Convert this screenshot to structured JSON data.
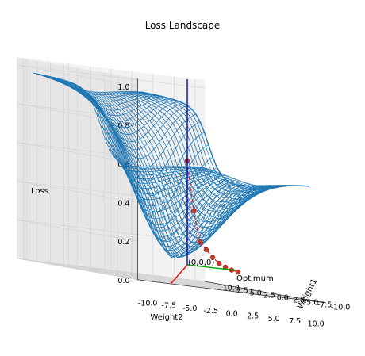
{
  "chart_data": {
    "type": "surface",
    "title": "Loss Landscape",
    "xlabel": "Weight2",
    "ylabel": "Weight1",
    "zlabel": "Loss",
    "x_ticks": [
      "-10.0",
      "-7.5",
      "-5.0",
      "-2.5",
      "0.0",
      "2.5",
      "5.0",
      "7.5",
      "10.0"
    ],
    "y_ticks": [
      "10.0",
      "7.5",
      "5.0",
      "2.5",
      "0.0",
      "-2.5",
      "-5.0",
      "-7.5",
      "-10.0"
    ],
    "z_ticks": [
      "0.0",
      "0.2",
      "0.4",
      "0.6",
      "0.8",
      "1.0"
    ],
    "xlim": [
      -10,
      10
    ],
    "ylim": [
      -10,
      10
    ],
    "zlim": [
      0,
      1
    ],
    "surface_color": "#1f77b4",
    "path_color": "#d62728",
    "path_marker_color": "#c0392b",
    "axis_colors": {
      "x": "#ff0000",
      "y": "#00aa00",
      "z": "#0000cc"
    },
    "origin_label": "(0,0,0)",
    "optimum_label": "Optimum",
    "descent_path": [
      {
        "z": 0.62
      },
      {
        "z": 0.36
      },
      {
        "z": 0.2
      },
      {
        "z": 0.16
      },
      {
        "z": 0.12
      },
      {
        "z": 0.09
      },
      {
        "z": 0.07
      },
      {
        "z": 0.055
      },
      {
        "z": 0.045
      }
    ]
  }
}
